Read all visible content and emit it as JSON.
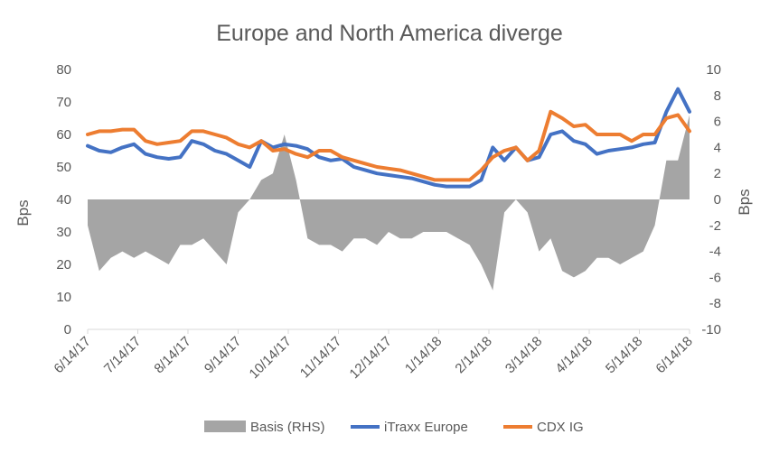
{
  "chart_data": {
    "type": "line",
    "title": "Europe and North America diverge",
    "ylabel": "Bps",
    "y2label": "Bps",
    "ylim": [
      0,
      80
    ],
    "y2lim": [
      -10,
      10
    ],
    "yticks": [
      "0",
      "10",
      "20",
      "30",
      "40",
      "50",
      "60",
      "70",
      "80"
    ],
    "y2ticks": [
      "-10",
      "-8",
      "-6",
      "-4",
      "-2",
      "0",
      "2",
      "4",
      "6",
      "8",
      "10"
    ],
    "xticks": [
      "6/14/17",
      "7/14/17",
      "8/14/17",
      "9/14/17",
      "10/14/17",
      "11/14/17",
      "12/14/17",
      "1/14/18",
      "2/14/18",
      "3/14/18",
      "4/14/18",
      "5/14/18",
      "6/14/18"
    ],
    "legend_position": "bottom",
    "grid": false,
    "x": [
      "6/14/17",
      "6/21/17",
      "6/28/17",
      "7/5/17",
      "7/12/17",
      "7/19/17",
      "7/26/17",
      "8/2/17",
      "8/9/17",
      "8/16/17",
      "8/23/17",
      "8/30/17",
      "9/6/17",
      "9/13/17",
      "9/20/17",
      "9/27/17",
      "10/4/17",
      "10/11/17",
      "10/18/17",
      "10/25/17",
      "11/1/17",
      "11/8/17",
      "11/15/17",
      "11/22/17",
      "11/29/17",
      "12/6/17",
      "12/13/17",
      "12/20/17",
      "12/27/17",
      "1/3/18",
      "1/10/18",
      "1/17/18",
      "1/24/18",
      "1/31/18",
      "2/7/18",
      "2/14/18",
      "2/21/18",
      "2/28/18",
      "3/7/18",
      "3/14/18",
      "3/21/18",
      "3/28/18",
      "4/4/18",
      "4/11/18",
      "4/18/18",
      "4/25/18",
      "5/2/18",
      "5/9/18",
      "5/16/18",
      "5/23/18",
      "5/30/18",
      "6/6/18",
      "6/14/18"
    ],
    "series": [
      {
        "name": "Basis (RHS)",
        "type": "area",
        "axis": "right",
        "color": "#a5a5a5",
        "values": [
          -2.0,
          -5.5,
          -4.5,
          -4.0,
          -4.5,
          -4.0,
          -4.5,
          -5.0,
          -3.5,
          -3.5,
          -3.0,
          -4.0,
          -5.0,
          -1.0,
          0.0,
          1.5,
          2.0,
          5.0,
          1.5,
          -3.0,
          -3.5,
          -3.5,
          -4.0,
          -3.0,
          -3.0,
          -3.5,
          -2.5,
          -3.0,
          -3.0,
          -2.5,
          -2.5,
          -2.5,
          -3.0,
          -3.5,
          -5.0,
          -7.0,
          -1.0,
          0.0,
          -1.0,
          -4.0,
          -3.0,
          -5.5,
          -6.0,
          -5.5,
          -4.5,
          -4.5,
          -5.0,
          -4.5,
          -4.0,
          -2.0,
          3.0,
          3.0,
          6.5
        ]
      },
      {
        "name": "iTraxx Europe",
        "type": "line",
        "axis": "left",
        "color": "#4472c4",
        "values": [
          56.5,
          55.0,
          54.5,
          56.0,
          57.0,
          54.0,
          53.0,
          52.5,
          53.0,
          58.0,
          57.0,
          55.0,
          54.0,
          52.0,
          50.0,
          58.0,
          56.0,
          57.0,
          56.5,
          55.5,
          53.0,
          52.0,
          52.5,
          50.0,
          49.0,
          48.0,
          47.5,
          47.0,
          46.5,
          45.5,
          44.5,
          44.0,
          44.0,
          44.0,
          46.0,
          56.0,
          52.0,
          56.0,
          52.0,
          53.0,
          60.0,
          61.0,
          58.0,
          57.0,
          54.0,
          55.0,
          55.5,
          56.0,
          57.0,
          57.5,
          67.0,
          74.0,
          67.0
        ]
      },
      {
        "name": "CDX IG",
        "type": "line",
        "axis": "left",
        "color": "#ed7d31",
        "values": [
          60.0,
          61.0,
          61.0,
          61.5,
          61.5,
          58.0,
          57.0,
          57.5,
          58.0,
          61.0,
          61.0,
          60.0,
          59.0,
          57.0,
          56.0,
          58.0,
          55.0,
          55.5,
          54.0,
          53.0,
          55.0,
          55.0,
          53.0,
          52.0,
          51.0,
          50.0,
          49.5,
          49.0,
          48.0,
          47.0,
          46.0,
          46.0,
          46.0,
          46.0,
          49.0,
          53.0,
          55.0,
          56.0,
          52.0,
          55.0,
          67.0,
          65.0,
          62.5,
          63.0,
          60.0,
          60.0,
          60.0,
          58.0,
          60.0,
          60.0,
          65.0,
          66.0,
          61.0
        ]
      }
    ]
  }
}
